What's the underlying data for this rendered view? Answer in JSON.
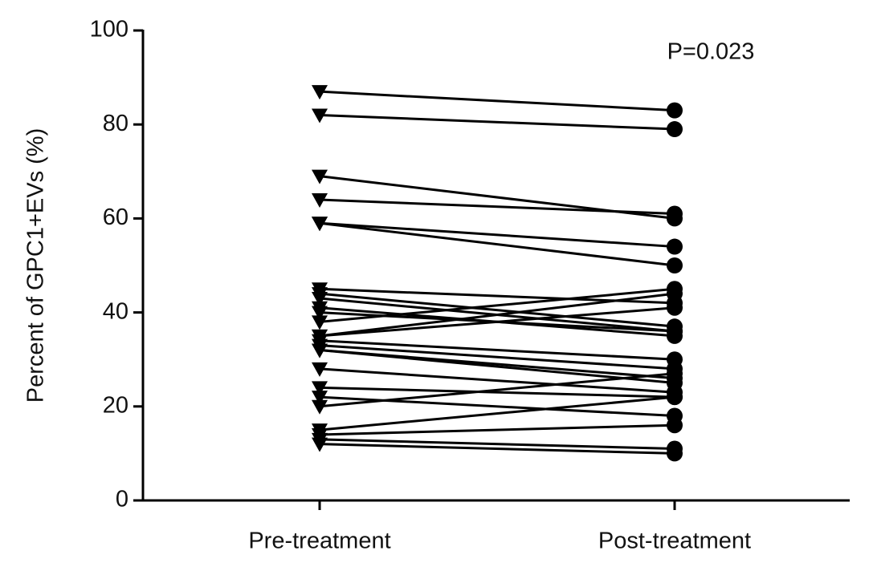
{
  "chart_data": {
    "type": "paired",
    "y_label": "Percent of GPC1+EVs (%)",
    "annotation": "P=0.023",
    "categories": [
      "Pre-treatment",
      "Post-treatment"
    ],
    "values": [
      [
        87,
        82,
        69,
        64,
        59,
        59,
        45,
        44,
        43,
        41,
        40,
        38,
        35,
        35,
        34,
        33,
        32,
        32,
        28,
        24,
        22,
        20,
        15,
        14,
        13,
        12
      ],
      [
        83,
        79,
        60,
        61,
        54,
        50,
        42,
        37,
        36,
        35,
        36,
        45,
        44,
        41,
        30,
        28,
        25,
        26,
        23,
        22,
        18,
        27,
        22,
        16,
        11,
        10
      ]
    ],
    "color": "#000000",
    "ylim": [
      0,
      100
    ],
    "yticks": [
      0,
      20,
      40,
      60,
      80,
      100
    ]
  }
}
